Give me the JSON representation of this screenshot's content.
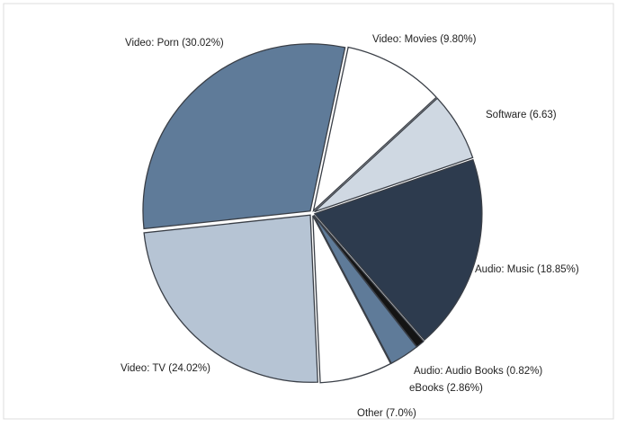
{
  "chart_data": {
    "type": "pie",
    "categories": [
      "Video: Movies (9.80%)",
      "Software (6.63)",
      "Audio: Music (18.85%)",
      "Audio: Audio Books (0.82%)",
      "eBooks (2.86%)",
      "Other (7.0%)",
      "Video: TV (24.02%)",
      "Video: Porn (30.02%)"
    ],
    "values": [
      9.8,
      6.63,
      18.85,
      0.82,
      2.86,
      7.0,
      24.02,
      30.02
    ],
    "colors": [
      "#ffffff",
      "#cfd8e2",
      "#2d3b4e",
      "#141414",
      "#5f7b99",
      "#ffffff",
      "#b6c4d4",
      "#5f7b99"
    ]
  }
}
